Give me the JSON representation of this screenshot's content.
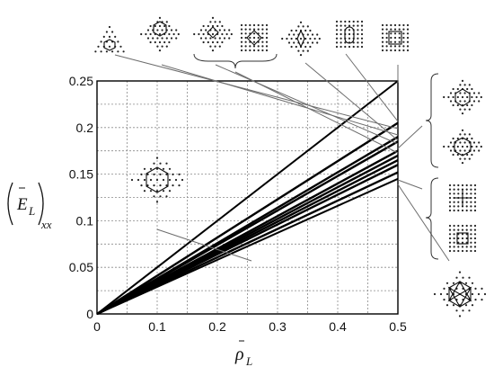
{
  "chart_data": {
    "type": "line",
    "title": "",
    "xlabel_var": "ρ",
    "xlabel_sub": "L",
    "ylabel_var": "E",
    "ylabel_sub": "L",
    "ylabel_suffix": "xx",
    "xlim": [
      0,
      0.5
    ],
    "ylim": [
      0,
      0.25
    ],
    "x_ticks": [
      "0",
      "0.1",
      "0.2",
      "0.3",
      "0.4",
      "0.5"
    ],
    "y_ticks": [
      "0",
      "0.05",
      "0.1",
      "0.15",
      "0.2",
      "0.25"
    ],
    "grid": true,
    "series": [
      {
        "x": [
          0,
          0.5
        ],
        "y": [
          0,
          0.25
        ]
      },
      {
        "x": [
          0,
          0.5
        ],
        "y": [
          0,
          0.205
        ]
      },
      {
        "x": [
          0,
          0.5
        ],
        "y": [
          0,
          0.19
        ]
      },
      {
        "x": [
          0,
          0.5
        ],
        "y": [
          0,
          0.185
        ]
      },
      {
        "x": [
          0,
          0.5
        ],
        "y": [
          0,
          0.175
        ]
      },
      {
        "x": [
          0,
          0.5
        ],
        "y": [
          0,
          0.17
        ]
      },
      {
        "x": [
          0,
          0.5
        ],
        "y": [
          0,
          0.165
        ]
      },
      {
        "x": [
          0,
          0.5
        ],
        "y": [
          0,
          0.16
        ]
      },
      {
        "x": [
          0,
          0.5
        ],
        "y": [
          0,
          0.152
        ]
      },
      {
        "x": [
          0,
          0.5
        ],
        "y": [
          0,
          0.145
        ]
      }
    ],
    "annotations": "lattice-structure insets with arrows pointing to each line"
  }
}
